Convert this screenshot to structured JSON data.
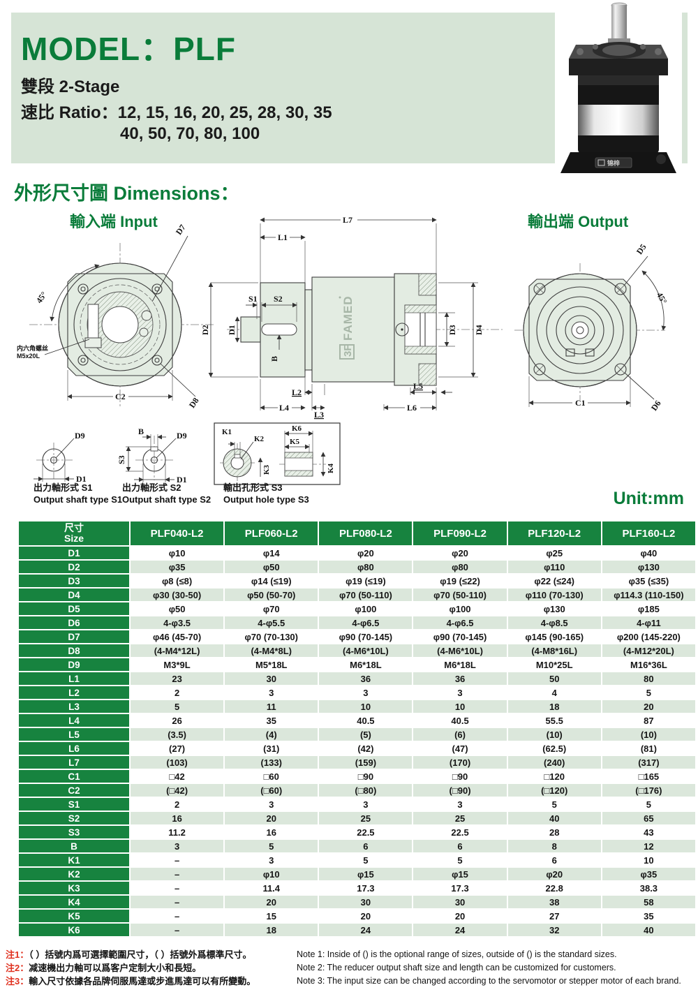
{
  "colors": {
    "accent_green": "#0a7c3a",
    "table_header_green": "#17833f",
    "row_alt_green": "#dbe7db",
    "header_box_green": "#d6e4d6",
    "note_red": "#e0301e",
    "drawing_fill": "#e3ece2"
  },
  "header": {
    "model_title": "MODEL：PLF",
    "stage": "雙段 2-Stage",
    "ratio_line1": "速比 Ratio：12, 15, 16, 20, 25, 28, 30, 35",
    "ratio_line2": "40, 50, 70, 80, 100"
  },
  "product": {
    "base_logo": "锦梓"
  },
  "section": {
    "title": "外形尺寸圖 Dimensions：",
    "input_label": "輸入端 Input",
    "output_label": "輸出端 Output",
    "unit": "Unit:mm"
  },
  "drawing_labels": {
    "input": {
      "angle": "45°",
      "d7": "D7",
      "d8": "D8",
      "c2": "C2",
      "screw_line1": "内六角螺丝",
      "screw_line2": "M5x20L"
    },
    "side": {
      "l7": "L7",
      "l1": "L1",
      "s1": "S1",
      "s2": "S2",
      "d1": "D1",
      "d2": "D2",
      "b": "B",
      "l2": "L2",
      "l3": "L3",
      "l4": "L4",
      "l5": "L5",
      "l6": "L6",
      "d3": "D3",
      "d4": "D4",
      "logo": "3F FAMED"
    },
    "output": {
      "d5": "D5",
      "angle": "45°",
      "d6": "D6",
      "c1": "C1"
    },
    "type_s1": {
      "d9": "D9",
      "d1": "D1"
    },
    "type_s2": {
      "b": "B",
      "s3": "S3",
      "d9": "D9",
      "d1": "D1"
    },
    "type_s3": {
      "k1": "K1",
      "k2": "K2",
      "k3": "K3",
      "k4": "K4",
      "k5": "K5",
      "k6": "K6"
    }
  },
  "captions": {
    "s1_zh": "出力軸形式 S1",
    "s1_en": "Output shaft type S1",
    "s2_zh": "出力軸形式 S2",
    "s2_en": "Output shaft type S2",
    "s3_zh": "輸出孔形式 S3",
    "s3_en": "Output hole type S3"
  },
  "table": {
    "size_header_zh": "尺寸",
    "size_header_en": "Size",
    "columns": [
      "PLF040-L2",
      "PLF060-L2",
      "PLF080-L2",
      "PLF090-L2",
      "PLF120-L2",
      "PLF160-L2"
    ],
    "rows": [
      {
        "label": "D1",
        "values": [
          "φ10",
          "φ14",
          "φ20",
          "φ20",
          "φ25",
          "φ40"
        ]
      },
      {
        "label": "D2",
        "values": [
          "φ35",
          "φ50",
          "φ80",
          "φ80",
          "φ110",
          "φ130"
        ]
      },
      {
        "label": "D3",
        "values": [
          "φ8 (≤8)",
          "φ14 (≤19)",
          "φ19 (≤19)",
          "φ19 (≤22)",
          "φ22 (≤24)",
          "φ35 (≤35)"
        ]
      },
      {
        "label": "D4",
        "values": [
          "φ30 (30-50)",
          "φ50 (50-70)",
          "φ70 (50-110)",
          "φ70 (50-110)",
          "φ110 (70-130)",
          "φ114.3 (110-150)"
        ]
      },
      {
        "label": "D5",
        "values": [
          "φ50",
          "φ70",
          "φ100",
          "φ100",
          "φ130",
          "φ185"
        ]
      },
      {
        "label": "D6",
        "values": [
          "4-φ3.5",
          "4-φ5.5",
          "4-φ6.5",
          "4-φ6.5",
          "4-φ8.5",
          "4-φ11"
        ]
      },
      {
        "label": "D7",
        "values": [
          "φ46 (45-70)",
          "φ70 (70-130)",
          "φ90 (70-145)",
          "φ90 (70-145)",
          "φ145 (90-165)",
          "φ200 (145-220)"
        ]
      },
      {
        "label": "D8",
        "values": [
          "(4-M4*12L)",
          "(4-M4*8L)",
          "(4-M6*10L)",
          "(4-M6*10L)",
          "(4-M8*16L)",
          "(4-M12*20L)"
        ]
      },
      {
        "label": "D9",
        "values": [
          "M3*9L",
          "M5*18L",
          "M6*18L",
          "M6*18L",
          "M10*25L",
          "M16*36L"
        ]
      },
      {
        "label": "L1",
        "values": [
          "23",
          "30",
          "36",
          "36",
          "50",
          "80"
        ]
      },
      {
        "label": "L2",
        "values": [
          "2",
          "3",
          "3",
          "3",
          "4",
          "5"
        ]
      },
      {
        "label": "L3",
        "values": [
          "5",
          "11",
          "10",
          "10",
          "18",
          "20"
        ]
      },
      {
        "label": "L4",
        "values": [
          "26",
          "35",
          "40.5",
          "40.5",
          "55.5",
          "87"
        ]
      },
      {
        "label": "L5",
        "values": [
          "(3.5)",
          "(4)",
          "(5)",
          "(6)",
          "(10)",
          "(10)"
        ]
      },
      {
        "label": "L6",
        "values": [
          "(27)",
          "(31)",
          "(42)",
          "(47)",
          "(62.5)",
          "(81)"
        ]
      },
      {
        "label": "L7",
        "values": [
          "(103)",
          "(133)",
          "(159)",
          "(170)",
          "(240)",
          "(317)"
        ]
      },
      {
        "label": "C1",
        "values": [
          "□42",
          "□60",
          "□90",
          "□90",
          "□120",
          "□165"
        ]
      },
      {
        "label": "C2",
        "values": [
          "(□42)",
          "(□60)",
          "(□80)",
          "(□90)",
          "(□120)",
          "(□176)"
        ]
      },
      {
        "label": "S1",
        "values": [
          "2",
          "3",
          "3",
          "3",
          "5",
          "5"
        ]
      },
      {
        "label": "S2",
        "values": [
          "16",
          "20",
          "25",
          "25",
          "40",
          "65"
        ]
      },
      {
        "label": "S3",
        "values": [
          "11.2",
          "16",
          "22.5",
          "22.5",
          "28",
          "43"
        ]
      },
      {
        "label": "B",
        "values": [
          "3",
          "5",
          "6",
          "6",
          "8",
          "12"
        ]
      },
      {
        "label": "K1",
        "values": [
          "–",
          "3",
          "5",
          "5",
          "6",
          "10"
        ]
      },
      {
        "label": "K2",
        "values": [
          "–",
          "φ10",
          "φ15",
          "φ15",
          "φ20",
          "φ35"
        ]
      },
      {
        "label": "K3",
        "values": [
          "–",
          "11.4",
          "17.3",
          "17.3",
          "22.8",
          "38.3"
        ]
      },
      {
        "label": "K4",
        "values": [
          "–",
          "20",
          "30",
          "30",
          "38",
          "58"
        ]
      },
      {
        "label": "K5",
        "values": [
          "–",
          "15",
          "20",
          "20",
          "27",
          "35"
        ]
      },
      {
        "label": "K6",
        "values": [
          "–",
          "18",
          "24",
          "24",
          "32",
          "40"
        ]
      }
    ]
  },
  "notes": {
    "zh": [
      {
        "label": "注1：",
        "text": "（ ）括號内爲可選擇範圍尺寸，（ ）括號外爲標準尺寸。"
      },
      {
        "label": "注2：",
        "text": "减速機出力軸可以爲客户定制大小和長短。"
      },
      {
        "label": "注3：",
        "text": "輸入尺寸依據各品牌伺服馬達或步進馬達可以有所變動。"
      }
    ],
    "en": [
      "Note 1: Inside of () is the optional range of sizes, outside of () is the standard sizes.",
      "Note 2: The reducer output shaft size and length can be customized for customers.",
      "Note 3: The input size can be changed according to the servomotor or stepper motor of each brand."
    ]
  }
}
